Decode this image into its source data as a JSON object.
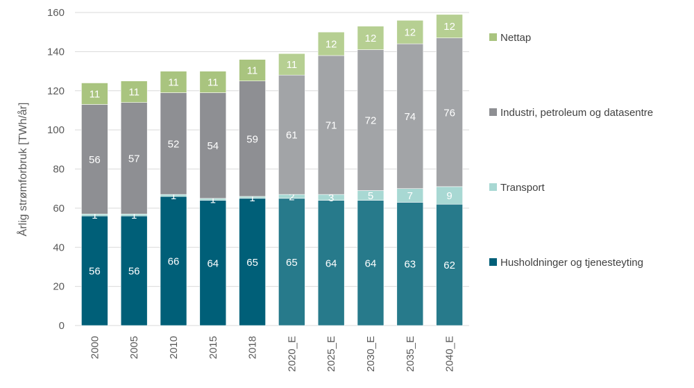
{
  "chart_data": {
    "type": "bar",
    "stacked": true,
    "title": "",
    "xlabel": "",
    "ylabel": "Årlig strømforbruk [TWh/år]",
    "ylim": [
      0,
      160
    ],
    "yticks": [
      0,
      20,
      40,
      60,
      80,
      100,
      120,
      140,
      160
    ],
    "grid": true,
    "legend_position": "right",
    "categories": [
      "2000",
      "2005",
      "2010",
      "2015",
      "2018",
      "2020_E",
      "2025_E",
      "2030_E",
      "2035_E",
      "2040_E"
    ],
    "forecast_categories": [
      "2020_E",
      "2025_E",
      "2030_E",
      "2035_E",
      "2040_E"
    ],
    "series": [
      {
        "name": "Husholdninger og tjenesteyting",
        "values": [
          56,
          56,
          66,
          64,
          65,
          65,
          64,
          64,
          63,
          62
        ],
        "color": "#005f78",
        "forecast_color": "#277a8b"
      },
      {
        "name": "Transport",
        "values": [
          1,
          1,
          1,
          1,
          1,
          2,
          3,
          5,
          7,
          9
        ],
        "color": "#a8d8d3",
        "forecast_color": "#a8d8d3"
      },
      {
        "name": "Industri, petroleum og datasentre",
        "values": [
          56,
          57,
          52,
          54,
          59,
          61,
          71,
          72,
          74,
          76
        ],
        "color": "#8e8f93",
        "forecast_color": "#a2a4a7"
      },
      {
        "name": "Nettap",
        "values": [
          11,
          11,
          11,
          11,
          11,
          11,
          12,
          12,
          12,
          12
        ],
        "color": "#a9c47f",
        "forecast_color": "#b6cf92"
      }
    ]
  }
}
